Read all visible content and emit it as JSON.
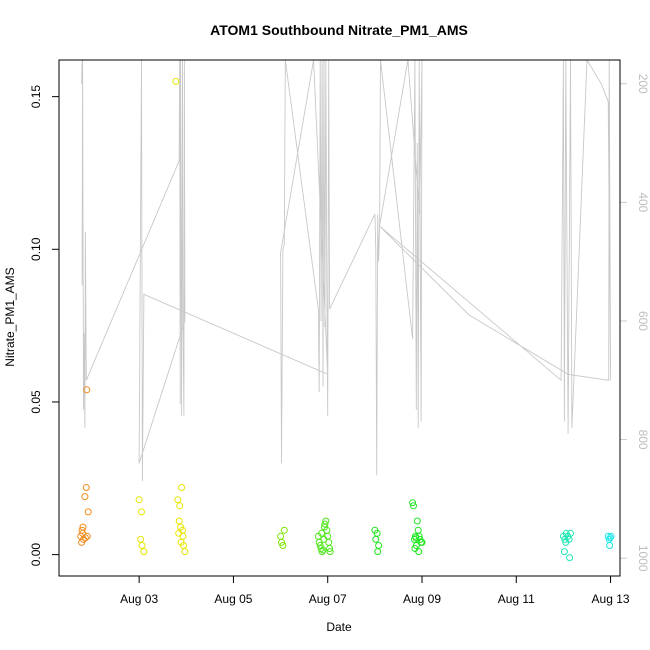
{
  "chart_data": {
    "type": "scatter",
    "title": "ATOM1 Southbound Nitrate_PM1_AMS",
    "xlabel": "Date",
    "ylabel": "Nitrate_PM1_AMS",
    "xlim": [
      1.3,
      13.2
    ],
    "ylim": [
      -0.007,
      0.162
    ],
    "x_ticks": [
      {
        "value": 3,
        "label": "Aug 03"
      },
      {
        "value": 5,
        "label": "Aug 05"
      },
      {
        "value": 7,
        "label": "Aug 07"
      },
      {
        "value": 9,
        "label": "Aug 09"
      },
      {
        "value": 11,
        "label": "Aug 11"
      },
      {
        "value": 13,
        "label": "Aug 13"
      }
    ],
    "y_ticks": [
      {
        "value": 0.0,
        "label": "0.00"
      },
      {
        "value": 0.05,
        "label": "0.05"
      },
      {
        "value": 0.1,
        "label": "0.10"
      },
      {
        "value": 0.15,
        "label": "0.15"
      }
    ],
    "y2_ticks": [
      {
        "value": 200,
        "label": "200"
      },
      {
        "value": 400,
        "label": "400"
      },
      {
        "value": 600,
        "label": "600"
      },
      {
        "value": 800,
        "label": "800"
      },
      {
        "value": 1000,
        "label": "1000"
      }
    ],
    "y2_range": [
      1030,
      160
    ],
    "y2_color": "#c8c8c8",
    "grid": false,
    "point_groups": [
      {
        "color": "#f08c1e",
        "points": [
          [
            1.76,
            0.006
          ],
          [
            1.79,
            0.008
          ],
          [
            1.81,
            0.009
          ],
          [
            1.78,
            0.004
          ],
          [
            1.8,
            0.007
          ],
          [
            1.82,
            0.005
          ],
          [
            1.85,
            0.019
          ],
          [
            1.88,
            0.022
          ],
          [
            1.92,
            0.014
          ],
          [
            1.9,
            0.006
          ],
          [
            1.86,
            0.0055
          ],
          [
            1.89,
            0.054
          ]
        ]
      },
      {
        "color": "#e6e600",
        "points": [
          [
            3.0,
            0.018
          ],
          [
            3.05,
            0.014
          ],
          [
            3.03,
            0.005
          ],
          [
            3.06,
            0.003
          ],
          [
            3.1,
            0.001
          ],
          [
            3.78,
            0.155
          ],
          [
            3.82,
            0.018
          ],
          [
            3.86,
            0.016
          ],
          [
            3.9,
            0.022
          ],
          [
            3.85,
            0.011
          ],
          [
            3.88,
            0.009
          ],
          [
            3.92,
            0.008
          ],
          [
            3.93,
            0.006
          ],
          [
            3.89,
            0.004
          ],
          [
            3.94,
            0.003
          ],
          [
            3.97,
            0.001
          ],
          [
            3.84,
            0.007
          ]
        ]
      },
      {
        "color": "#7de600",
        "points": [
          [
            6.0,
            0.006
          ],
          [
            6.02,
            0.004
          ],
          [
            6.05,
            0.003
          ],
          [
            6.08,
            0.008
          ]
        ]
      },
      {
        "color": "#50e61e",
        "points": [
          [
            6.8,
            0.006
          ],
          [
            6.82,
            0.004
          ],
          [
            6.84,
            0.003
          ],
          [
            6.86,
            0.002
          ],
          [
            6.88,
            0.001
          ],
          [
            6.9,
            0.0015
          ],
          [
            6.92,
            0.005
          ],
          [
            6.94,
            0.01
          ],
          [
            6.96,
            0.011
          ],
          [
            6.98,
            0.008
          ],
          [
            7.0,
            0.006
          ],
          [
            7.02,
            0.004
          ],
          [
            7.04,
            0.002
          ],
          [
            6.87,
            0.007
          ],
          [
            6.93,
            0.009
          ],
          [
            7.05,
            0.001
          ]
        ]
      },
      {
        "color": "#1ee61e",
        "points": [
          [
            8.0,
            0.008
          ],
          [
            8.05,
            0.007
          ],
          [
            8.02,
            0.005
          ],
          [
            8.08,
            0.003
          ],
          [
            8.06,
            0.001
          ],
          [
            8.8,
            0.017
          ],
          [
            8.82,
            0.016
          ],
          [
            8.84,
            0.005
          ],
          [
            8.86,
            0.006
          ],
          [
            8.88,
            0.003
          ],
          [
            8.9,
            0.011
          ],
          [
            8.92,
            0.008
          ],
          [
            8.94,
            0.006
          ],
          [
            8.96,
            0.005
          ],
          [
            8.98,
            0.004
          ],
          [
            8.85,
            0.002
          ],
          [
            8.93,
            0.001
          ],
          [
            9.0,
            0.004
          ],
          [
            8.87,
            0.0055
          ]
        ]
      },
      {
        "color": "#1ee6b4",
        "points": [
          [
            12.0,
            0.006
          ],
          [
            12.03,
            0.005
          ],
          [
            12.06,
            0.007
          ],
          [
            12.09,
            0.006
          ],
          [
            12.12,
            0.005
          ],
          [
            12.15,
            0.007
          ],
          [
            12.02,
            0.001
          ],
          [
            12.13,
            -0.001
          ],
          [
            12.05,
            0.004
          ]
        ]
      },
      {
        "color": "#1ee6e6",
        "points": [
          [
            12.95,
            0.006
          ],
          [
            12.97,
            0.005
          ],
          [
            12.99,
            0.0055
          ],
          [
            13.01,
            0.006
          ],
          [
            12.98,
            0.003
          ]
        ]
      }
    ],
    "line_series": {
      "name": "",
      "color": "#c8c8c8",
      "axis": "right",
      "points": [
        [
          1.78,
          200
        ],
        [
          1.79,
          160
        ],
        [
          1.8,
          160
        ],
        [
          1.79,
          540
        ],
        [
          1.8,
          160
        ],
        [
          1.82,
          750
        ],
        [
          1.83,
          620
        ],
        [
          1.85,
          780
        ],
        [
          1.86,
          450
        ],
        [
          1.88,
          700
        ],
        [
          3.85,
          330
        ],
        [
          3.86,
          160
        ],
        [
          3.87,
          740
        ],
        [
          3.88,
          160
        ],
        [
          3.9,
          760
        ],
        [
          3.92,
          160
        ],
        [
          3.93,
          590
        ],
        [
          3.95,
          760
        ],
        [
          3.96,
          160
        ],
        [
          3.97,
          600
        ],
        [
          3.0,
          840
        ],
        [
          3.05,
          160
        ],
        [
          3.07,
          870
        ],
        [
          3.1,
          555
        ],
        [
          7.0,
          690
        ],
        [
          6.7,
          160
        ],
        [
          6.0,
          485
        ],
        [
          6.02,
          840
        ],
        [
          6.05,
          480
        ],
        [
          6.08,
          470
        ],
        [
          6.1,
          160
        ],
        [
          6.8,
          580
        ],
        [
          6.82,
          720
        ],
        [
          6.84,
          160
        ],
        [
          6.86,
          600
        ],
        [
          6.88,
          160
        ],
        [
          6.9,
          710
        ],
        [
          6.92,
          160
        ],
        [
          6.94,
          610
        ],
        [
          6.96,
          160
        ],
        [
          6.98,
          520
        ],
        [
          7.0,
          760
        ],
        [
          7.02,
          160
        ],
        [
          7.04,
          580
        ],
        [
          8.0,
          420
        ],
        [
          8.02,
          480
        ],
        [
          8.04,
          860
        ],
        [
          8.06,
          420
        ],
        [
          8.08,
          500
        ],
        [
          8.1,
          440
        ],
        [
          8.12,
          160
        ],
        [
          8.8,
          630
        ],
        [
          8.85,
          160
        ],
        [
          8.88,
          750
        ],
        [
          8.9,
          300
        ],
        [
          8.92,
          780
        ],
        [
          8.94,
          160
        ],
        [
          8.96,
          420
        ],
        [
          8.98,
          770
        ],
        [
          9.0,
          160
        ],
        [
          8.95,
          420
        ],
        [
          8.7,
          160
        ],
        [
          8.1,
          440
        ],
        [
          11.95,
          700
        ],
        [
          12.0,
          160
        ],
        [
          12.02,
          770
        ],
        [
          12.05,
          160
        ],
        [
          12.1,
          790
        ],
        [
          12.15,
          160
        ],
        [
          12.18,
          780
        ],
        [
          12.5,
          160
        ],
        [
          12.8,
          200
        ],
        [
          12.95,
          230
        ],
        [
          13.0,
          700
        ],
        [
          12.97,
          160
        ],
        [
          12.96,
          700
        ],
        [
          12.96,
          700
        ],
        [
          12.1,
          690
        ],
        [
          10.0,
          590
        ],
        [
          8.1,
          440
        ]
      ]
    }
  }
}
